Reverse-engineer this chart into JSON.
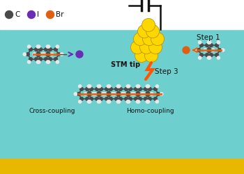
{
  "bg_color": "#6ECFCF",
  "substrate_color": "#E8B800",
  "white_bg": "#FFFFFF",
  "carbon_color": "#4A4A4A",
  "hydrogen_color": "#E8E8E8",
  "iodine_color": "#6B2DB5",
  "bromine_color": "#E06010",
  "bond_color": "#E06010",
  "stm_tip_color": "#FFD700",
  "stm_tip_edge": "#B8960C",
  "lightning_color": "#FF5500",
  "text_color": "#111111",
  "arrow_color": "#E06010",
  "iodine_arrow_color": "#6B2DB5",
  "legend_C_color": "#4A4A4A",
  "legend_I_color": "#6B2DB5",
  "legend_Br_color": "#E06010",
  "step1_text": "Step 1",
  "step3_text": "Step 3",
  "stm_tip_label": "STM tip",
  "cross_coupling_label": "Cross-coupling",
  "homo_coupling_label": "Homo-coupling",
  "figsize": [
    3.5,
    2.5
  ],
  "dpi": 100
}
